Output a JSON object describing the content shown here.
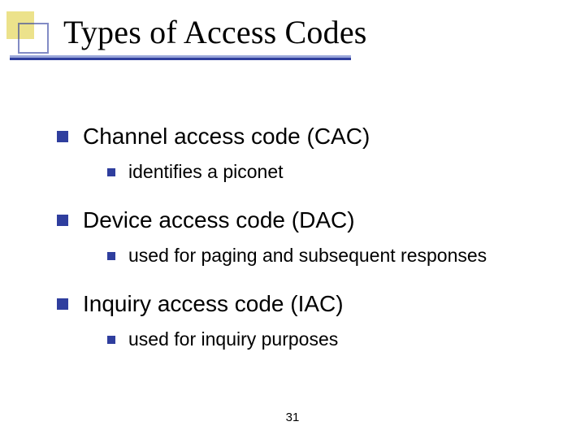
{
  "slide": {
    "title": "Types of Access Codes",
    "page_number": "31",
    "decor": {
      "yellow": "#dccb2c",
      "blue_border": "#2f3e9e",
      "underline_light": "#9aa6d9",
      "underline_dark": "#2f3e9e",
      "bullet_color": "#2f3e9e"
    },
    "typography": {
      "title_font": "Times New Roman",
      "title_size_pt": 40,
      "body_font": "Verdana",
      "l1_size_pt": 28,
      "l2_size_pt": 23
    },
    "items": [
      {
        "label": "Channel access code (CAC)",
        "sub": "identifies a piconet"
      },
      {
        "label": "Device access code (DAC)",
        "sub": "used for paging and subsequent responses"
      },
      {
        "label": "Inquiry access code (IAC)",
        "sub": "used for inquiry purposes"
      }
    ]
  }
}
